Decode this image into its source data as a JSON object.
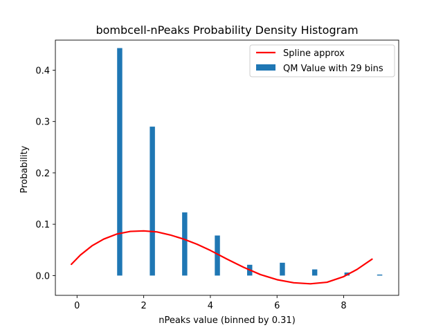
{
  "chart_data": {
    "type": "bar",
    "title": "bombcell-nPeaks Probability Density Histogram",
    "xlabel": "nPeaks value (binned by 0.31)",
    "ylabel": "Probability",
    "xlim": [
      -0.65,
      9.65
    ],
    "ylim": [
      -0.0385,
      0.4585
    ],
    "x_ticks": [
      0,
      2,
      4,
      6,
      8
    ],
    "y_ticks": [
      0.0,
      0.1,
      0.2,
      0.3,
      0.4
    ],
    "x_tick_labels": [
      "0",
      "2",
      "4",
      "6",
      "8"
    ],
    "y_tick_labels": [
      "0.0",
      "0.1",
      "0.2",
      "0.3",
      "0.4"
    ],
    "grid": false,
    "legend_position": "top-right",
    "bar_width": 0.155,
    "colors": {
      "bars": "#1f77b4",
      "spline": "#ff0000"
    },
    "series": [
      {
        "name": "QM Value with 29 bins",
        "kind": "bar",
        "x": [
          1.28,
          2.26,
          3.23,
          4.21,
          5.18,
          6.16,
          7.13,
          8.1,
          9.08
        ],
        "values": [
          0.443,
          0.29,
          0.123,
          0.078,
          0.021,
          0.025,
          0.012,
          0.006,
          0.002
        ]
      },
      {
        "name": "Spline approx",
        "kind": "line",
        "x": [
          -0.17,
          0.1,
          0.45,
          0.8,
          1.2,
          1.6,
          2.0,
          2.4,
          2.8,
          3.2,
          3.6,
          4.0,
          4.5,
          5.0,
          5.5,
          6.0,
          6.5,
          7.0,
          7.5,
          8.0,
          8.4,
          8.85
        ],
        "values": [
          0.022,
          0.04,
          0.058,
          0.071,
          0.081,
          0.086,
          0.087,
          0.085,
          0.079,
          0.071,
          0.061,
          0.049,
          0.032,
          0.016,
          0.002,
          -0.008,
          -0.014,
          -0.016,
          -0.013,
          -0.002,
          0.012,
          0.032
        ]
      }
    ]
  }
}
